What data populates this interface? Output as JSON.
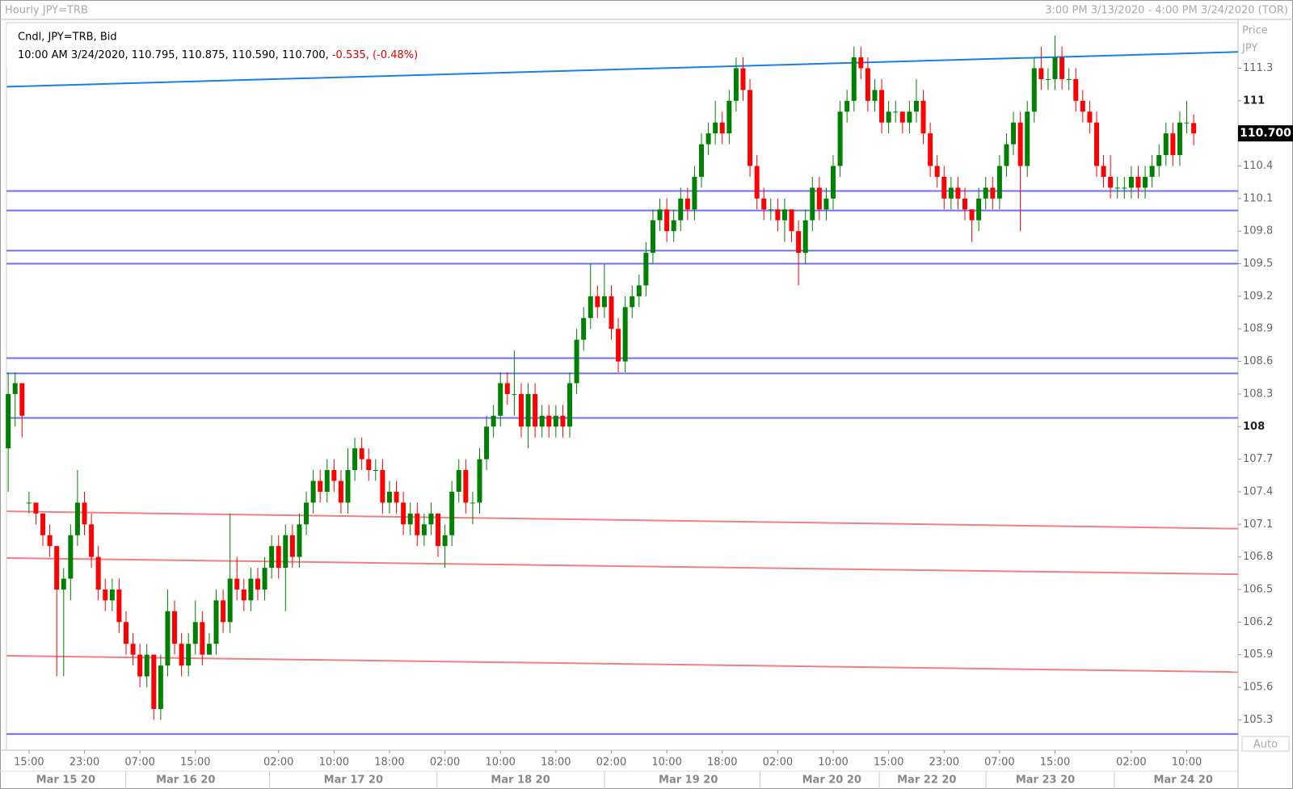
{
  "chart_data": {
    "type": "candlestick",
    "title": "Hourly JPY=TRB",
    "range_label": "3:00 PM 3/13/2020 - 4:00 PM 3/24/2020 (TOR)",
    "legend_line1": "Cndl, JPY=TRB, Bid",
    "legend_line2": "10:00 AM 3/24/2020, 110.795, 110.875, 110.590, 110.700,",
    "legend_change": "-0.535, (-0.48%)",
    "axis_title": "Price",
    "axis_unit": "JPY",
    "scale_mode": "Auto",
    "up_color": "#008000",
    "down_color": "#ff0000",
    "last_price": {
      "value": 110.7,
      "label": "110.700"
    },
    "ylim": [
      105.02,
      111.72
    ],
    "xlim": [
      -0.25,
      177.4
    ],
    "yticks": [
      105.3,
      105.6,
      105.9,
      106.2,
      106.5,
      106.8,
      107.1,
      107.4,
      107.7,
      108,
      108.3,
      108.6,
      108.9,
      109.2,
      109.5,
      109.8,
      110.1,
      110.4,
      111,
      111.3
    ],
    "xticks": [
      {
        "value": 3,
        "label": "15:00"
      },
      {
        "value": 11,
        "label": "23:00"
      },
      {
        "value": 19,
        "label": "07:00"
      },
      {
        "value": 27,
        "label": "15:00"
      },
      {
        "value": 39,
        "label": "02:00"
      },
      {
        "value": 47,
        "label": "10:00"
      },
      {
        "value": 55,
        "label": "18:00"
      },
      {
        "value": 63,
        "label": "02:00"
      },
      {
        "value": 71,
        "label": "10:00"
      },
      {
        "value": 79,
        "label": "18:00"
      },
      {
        "value": 87,
        "label": "02:00"
      },
      {
        "value": 95,
        "label": "10:00"
      },
      {
        "value": 103,
        "label": "18:00"
      },
      {
        "value": 111,
        "label": "02:00"
      },
      {
        "value": 119,
        "label": "10:00"
      },
      {
        "value": 127,
        "label": "15:00"
      },
      {
        "value": 135,
        "label": "23:00"
      },
      {
        "value": 143,
        "label": "07:00"
      },
      {
        "value": 151,
        "label": "15:00"
      },
      {
        "value": 162,
        "label": "02:00"
      },
      {
        "value": 170,
        "label": "10:00"
      }
    ],
    "date_ticks": [
      {
        "value": 8.3,
        "label": "Mar 15 20"
      },
      {
        "value": 25.6,
        "label": "Mar 16 20"
      },
      {
        "value": 49.8,
        "label": "Mar 17 20"
      },
      {
        "value": 73.9,
        "label": "Mar 18 20"
      },
      {
        "value": 98.1,
        "label": "Mar 19 20"
      },
      {
        "value": 118.8,
        "label": "Mar 20 20"
      },
      {
        "value": 132.5,
        "label": "Mar 22 20"
      },
      {
        "value": 149.6,
        "label": "Mar 23 20"
      },
      {
        "value": 169.5,
        "label": "Mar 24 20"
      }
    ],
    "hlines": [
      {
        "value": 110.17,
        "color": "#7070f0"
      },
      {
        "value": 109.99,
        "color": "#7070f0"
      },
      {
        "value": 109.62,
        "color": "#7070f0"
      },
      {
        "value": 109.5,
        "color": "#7070f0"
      },
      {
        "value": 108.63,
        "color": "#7070f0"
      },
      {
        "value": 108.49,
        "color": "#7070f0"
      },
      {
        "value": 108.08,
        "color": "#7070f0"
      },
      {
        "value": 105.17,
        "color": "#7070f0"
      }
    ],
    "trendlines": [
      {
        "points": [
          [
            -0.2,
            111.13
          ],
          [
            177.4,
            111.45
          ]
        ],
        "color": "#1a7ee8"
      },
      {
        "points": [
          [
            -0.2,
            107.22
          ],
          [
            177.4,
            107.06
          ]
        ],
        "color": "#f08080"
      },
      {
        "points": [
          [
            -0.2,
            106.79
          ],
          [
            177.4,
            106.64
          ]
        ],
        "color": "#f08080"
      },
      {
        "points": [
          [
            -0.2,
            105.89
          ],
          [
            177.4,
            105.74
          ]
        ],
        "color": "#f08080"
      }
    ],
    "ohlc": [
      [
        107.8,
        108.5,
        107.4,
        108.3
      ],
      [
        108.3,
        108.5,
        108.0,
        108.4
      ],
      [
        108.4,
        108.4,
        107.9,
        108.1
      ],
      [
        107.3,
        107.4,
        107.2,
        107.3
      ],
      [
        107.3,
        107.3,
        107.1,
        107.2
      ],
      [
        107.2,
        107.2,
        106.9,
        107.0
      ],
      [
        107.0,
        107.1,
        106.8,
        106.9
      ],
      [
        106.9,
        106.9,
        105.7,
        106.5
      ],
      [
        106.5,
        106.7,
        105.7,
        106.6
      ],
      [
        106.6,
        107.1,
        106.4,
        107.0
      ],
      [
        107.0,
        107.6,
        106.9,
        107.3
      ],
      [
        107.3,
        107.4,
        107.0,
        107.1
      ],
      [
        107.1,
        107.2,
        106.7,
        106.8
      ],
      [
        106.8,
        106.9,
        106.4,
        106.5
      ],
      [
        106.5,
        106.6,
        106.3,
        106.4
      ],
      [
        106.4,
        106.6,
        106.3,
        106.5
      ],
      [
        106.5,
        106.6,
        106.1,
        106.2
      ],
      [
        106.2,
        106.3,
        105.9,
        106.0
      ],
      [
        106.0,
        106.1,
        105.8,
        105.9
      ],
      [
        105.9,
        106.0,
        105.6,
        105.7
      ],
      [
        105.7,
        106.0,
        105.6,
        105.9
      ],
      [
        105.9,
        105.9,
        105.3,
        105.4
      ],
      [
        105.4,
        105.9,
        105.3,
        105.8
      ],
      [
        105.8,
        106.5,
        105.7,
        106.3
      ],
      [
        106.3,
        106.4,
        105.9,
        106.0
      ],
      [
        106.0,
        106.1,
        105.7,
        105.8
      ],
      [
        105.8,
        106.1,
        105.7,
        106.0
      ],
      [
        106.0,
        106.4,
        105.9,
        106.2
      ],
      [
        106.2,
        106.3,
        105.8,
        105.9
      ],
      [
        105.9,
        106.1,
        105.9,
        106.0
      ],
      [
        106.0,
        106.5,
        105.9,
        106.4
      ],
      [
        106.4,
        106.5,
        106.1,
        106.2
      ],
      [
        106.2,
        107.2,
        106.1,
        106.6
      ],
      [
        106.6,
        106.8,
        106.4,
        106.5
      ],
      [
        106.5,
        106.6,
        106.3,
        106.4
      ],
      [
        106.4,
        106.7,
        106.3,
        106.6
      ],
      [
        106.6,
        106.7,
        106.4,
        106.5
      ],
      [
        106.5,
        106.8,
        106.4,
        106.7
      ],
      [
        106.7,
        107.0,
        106.6,
        106.9
      ],
      [
        106.9,
        107.0,
        106.6,
        106.7
      ],
      [
        106.7,
        107.1,
        106.3,
        107.0
      ],
      [
        107.0,
        107.1,
        106.7,
        106.8
      ],
      [
        106.8,
        107.2,
        106.7,
        107.1
      ],
      [
        107.1,
        107.4,
        107.0,
        107.3
      ],
      [
        107.3,
        107.6,
        107.2,
        107.5
      ],
      [
        107.5,
        107.6,
        107.3,
        107.4
      ],
      [
        107.4,
        107.7,
        107.3,
        107.6
      ],
      [
        107.6,
        107.7,
        107.4,
        107.5
      ],
      [
        107.5,
        107.6,
        107.2,
        107.3
      ],
      [
        107.3,
        107.8,
        107.2,
        107.6
      ],
      [
        107.6,
        107.9,
        107.5,
        107.8
      ],
      [
        107.8,
        107.9,
        107.6,
        107.7
      ],
      [
        107.7,
        107.8,
        107.5,
        107.6
      ],
      [
        107.6,
        107.7,
        107.5,
        107.6
      ],
      [
        107.6,
        107.7,
        107.2,
        107.3
      ],
      [
        107.3,
        107.5,
        107.2,
        107.4
      ],
      [
        107.4,
        107.5,
        107.2,
        107.3
      ],
      [
        107.3,
        107.4,
        107.0,
        107.1
      ],
      [
        107.1,
        107.3,
        107.0,
        107.2
      ],
      [
        107.2,
        107.3,
        106.9,
        107.0
      ],
      [
        107.0,
        107.2,
        106.9,
        107.1
      ],
      [
        107.1,
        107.3,
        107.0,
        107.2
      ],
      [
        107.2,
        107.2,
        106.8,
        106.9
      ],
      [
        106.9,
        107.1,
        106.7,
        107.0
      ],
      [
        107.0,
        107.5,
        106.9,
        107.4
      ],
      [
        107.4,
        107.7,
        107.3,
        107.6
      ],
      [
        107.6,
        107.7,
        107.2,
        107.3
      ],
      [
        107.3,
        107.4,
        107.1,
        107.3
      ],
      [
        107.3,
        107.8,
        107.2,
        107.7
      ],
      [
        107.7,
        108.1,
        107.6,
        108.0
      ],
      [
        108.0,
        108.2,
        107.9,
        108.1
      ],
      [
        108.1,
        108.5,
        108.0,
        108.4
      ],
      [
        108.4,
        108.5,
        108.2,
        108.3
      ],
      [
        108.3,
        108.7,
        108.1,
        108.3
      ],
      [
        108.3,
        108.4,
        107.9,
        108.0
      ],
      [
        108.0,
        108.4,
        107.8,
        108.3
      ],
      [
        108.3,
        108.4,
        107.9,
        108.0
      ],
      [
        108.0,
        108.2,
        107.9,
        108.1
      ],
      [
        108.1,
        108.2,
        107.9,
        108.0
      ],
      [
        108.0,
        108.2,
        107.9,
        108.1
      ],
      [
        108.1,
        108.2,
        107.9,
        108.0
      ],
      [
        108.0,
        108.5,
        107.9,
        108.4
      ],
      [
        108.4,
        108.9,
        108.3,
        108.8
      ],
      [
        108.8,
        109.1,
        108.7,
        109.0
      ],
      [
        109.0,
        109.5,
        108.9,
        109.2
      ],
      [
        109.2,
        109.3,
        109.0,
        109.1
      ],
      [
        109.1,
        109.5,
        109.0,
        109.2
      ],
      [
        109.2,
        109.3,
        108.8,
        108.9
      ],
      [
        108.9,
        109.0,
        108.5,
        108.6
      ],
      [
        108.6,
        109.2,
        108.5,
        109.1
      ],
      [
        109.1,
        109.3,
        109.0,
        109.2
      ],
      [
        109.2,
        109.4,
        109.1,
        109.3
      ],
      [
        109.3,
        109.7,
        109.2,
        109.6
      ],
      [
        109.6,
        110.0,
        109.5,
        109.9
      ],
      [
        109.9,
        110.1,
        109.8,
        110.0
      ],
      [
        110.0,
        110.1,
        109.7,
        109.8
      ],
      [
        109.8,
        110.0,
        109.7,
        109.9
      ],
      [
        109.9,
        110.2,
        109.8,
        110.1
      ],
      [
        110.1,
        110.2,
        109.9,
        110.0
      ],
      [
        110.0,
        110.4,
        109.9,
        110.3
      ],
      [
        110.3,
        110.7,
        110.2,
        110.6
      ],
      [
        110.6,
        110.8,
        110.5,
        110.7
      ],
      [
        110.7,
        111.0,
        110.6,
        110.8
      ],
      [
        110.8,
        110.9,
        110.6,
        110.7
      ],
      [
        110.7,
        111.1,
        110.6,
        111.0
      ],
      [
        111.0,
        111.4,
        110.9,
        111.3
      ],
      [
        111.3,
        111.4,
        111.0,
        111.1
      ],
      [
        111.1,
        111.2,
        110.3,
        110.4
      ],
      [
        110.4,
        110.5,
        110.0,
        110.1
      ],
      [
        110.1,
        110.2,
        109.9,
        110.0
      ],
      [
        110.0,
        110.1,
        109.9,
        110.0
      ],
      [
        110.0,
        110.1,
        109.8,
        109.9
      ],
      [
        109.9,
        110.1,
        109.7,
        110.0
      ],
      [
        110.0,
        110.0,
        109.7,
        109.8
      ],
      [
        109.8,
        109.9,
        109.3,
        109.6
      ],
      [
        109.6,
        110.0,
        109.5,
        109.9
      ],
      [
        109.9,
        110.3,
        109.8,
        110.2
      ],
      [
        110.2,
        110.3,
        109.9,
        110.0
      ],
      [
        110.0,
        110.2,
        109.9,
        110.1
      ],
      [
        110.1,
        110.5,
        110.0,
        110.4
      ],
      [
        110.4,
        111.0,
        110.3,
        110.9
      ],
      [
        110.9,
        111.1,
        110.8,
        111.0
      ],
      [
        111.0,
        111.5,
        110.9,
        111.4
      ],
      [
        111.4,
        111.5,
        111.2,
        111.3
      ],
      [
        111.3,
        111.4,
        110.9,
        111.0
      ],
      [
        111.0,
        111.2,
        110.9,
        111.1
      ],
      [
        111.1,
        111.2,
        110.7,
        110.8
      ],
      [
        110.8,
        111.0,
        110.7,
        110.9
      ],
      [
        110.9,
        111.0,
        110.8,
        110.9
      ],
      [
        110.9,
        110.9,
        110.7,
        110.8
      ],
      [
        110.8,
        111.0,
        110.7,
        110.9
      ],
      [
        110.9,
        111.2,
        110.8,
        111.0
      ],
      [
        111.0,
        111.1,
        110.6,
        110.7
      ],
      [
        110.7,
        110.8,
        110.3,
        110.4
      ],
      [
        110.4,
        110.5,
        110.2,
        110.3
      ],
      [
        110.3,
        110.4,
        110.0,
        110.1
      ],
      [
        110.1,
        110.3,
        110.0,
        110.2
      ],
      [
        110.2,
        110.3,
        110.0,
        110.1
      ],
      [
        110.1,
        110.2,
        109.9,
        110.0
      ],
      [
        110.0,
        110.0,
        109.7,
        109.9
      ],
      [
        109.9,
        110.2,
        109.8,
        110.1
      ],
      [
        110.1,
        110.3,
        110.0,
        110.2
      ],
      [
        110.2,
        110.3,
        110.0,
        110.1
      ],
      [
        110.1,
        110.5,
        110.0,
        110.4
      ],
      [
        110.4,
        110.7,
        110.3,
        110.6
      ],
      [
        110.6,
        110.9,
        110.5,
        110.8
      ],
      [
        110.8,
        110.9,
        109.8,
        110.4
      ],
      [
        110.4,
        111.0,
        110.3,
        110.9
      ],
      [
        110.9,
        111.4,
        110.8,
        111.3
      ],
      [
        111.3,
        111.5,
        111.1,
        111.2
      ],
      [
        111.2,
        111.3,
        111.1,
        111.2
      ],
      [
        111.2,
        111.6,
        111.1,
        111.4
      ],
      [
        111.4,
        111.5,
        111.1,
        111.2
      ],
      [
        111.2,
        111.3,
        111.1,
        111.2
      ],
      [
        111.2,
        111.3,
        110.9,
        111.0
      ],
      [
        111.0,
        111.1,
        110.8,
        110.9
      ],
      [
        110.9,
        111.0,
        110.7,
        110.8
      ],
      [
        110.8,
        110.9,
        110.3,
        110.4
      ],
      [
        110.4,
        110.5,
        110.2,
        110.3
      ],
      [
        110.3,
        110.5,
        110.1,
        110.2
      ],
      [
        110.2,
        110.3,
        110.1,
        110.2
      ],
      [
        110.2,
        110.3,
        110.1,
        110.2
      ],
      [
        110.2,
        110.4,
        110.1,
        110.3
      ],
      [
        110.3,
        110.4,
        110.1,
        110.2
      ],
      [
        110.2,
        110.4,
        110.1,
        110.3
      ],
      [
        110.3,
        110.5,
        110.2,
        110.4
      ],
      [
        110.4,
        110.6,
        110.3,
        110.5
      ],
      [
        110.5,
        110.8,
        110.4,
        110.7
      ],
      [
        110.7,
        110.8,
        110.4,
        110.5
      ],
      [
        110.5,
        110.9,
        110.4,
        110.8
      ],
      [
        110.8,
        111.0,
        110.7,
        110.8
      ],
      [
        110.795,
        110.875,
        110.59,
        110.7
      ]
    ]
  }
}
